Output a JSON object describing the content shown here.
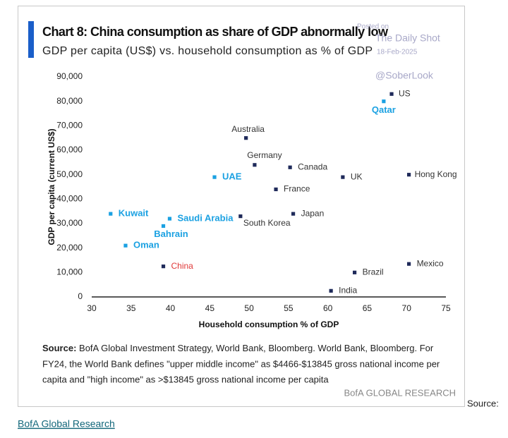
{
  "chart_data": {
    "type": "scatter",
    "title": "Chart 8: China consumption as share of GDP abnormally low",
    "subtitle": "GDP per capita (US$) vs. household consumption as % of GDP",
    "xlabel": "Household consumption % of GDP",
    "ylabel": "GDP per capita (current US$)",
    "point_labels": [
      "US",
      "Qatar",
      "Australia",
      "Germany",
      "Canada",
      "UK",
      "Hong Kong",
      "UAE",
      "France",
      "Japan",
      "South Korea",
      "Kuwait",
      "Saudi Arabia",
      "Bahrain",
      "Oman",
      "China",
      "Mexico",
      "Brazil",
      "India"
    ],
    "x": [
      68.1,
      67.1,
      49.6,
      50.7,
      55.2,
      61.9,
      70.3,
      45.6,
      53.4,
      55.6,
      48.9,
      32.4,
      39.9,
      39.1,
      34.3,
      39.1,
      70.3,
      63.4,
      60.4
    ],
    "values": [
      83000,
      80000,
      65000,
      54000,
      53000,
      49000,
      50000,
      49000,
      44000,
      34000,
      33000,
      34000,
      32000,
      29000,
      21000,
      12500,
      13500,
      10000,
      2500
    ],
    "colors": [
      "#1f2a5a",
      "#1ba1e2",
      "#1f2a5a",
      "#1f2a5a",
      "#1f2a5a",
      "#1f2a5a",
      "#1f2a5a",
      "#1ba1e2",
      "#1f2a5a",
      "#1f2a5a",
      "#1f2a5a",
      "#1ba1e2",
      "#1ba1e2",
      "#1ba1e2",
      "#1ba1e2",
      "#1f2a5a",
      "#1f2a5a",
      "#1f2a5a",
      "#1f2a5a"
    ],
    "label_colors": [
      "#333333",
      "#1ba1e2",
      "#333333",
      "#333333",
      "#333333",
      "#333333",
      "#333333",
      "#1ba1e2",
      "#333333",
      "#333333",
      "#333333",
      "#1ba1e2",
      "#1ba1e2",
      "#1ba1e2",
      "#1ba1e2",
      "#e03a3a",
      "#333333",
      "#333333",
      "#333333"
    ],
    "xlim": [
      30,
      75
    ],
    "xticks": [
      30,
      35,
      40,
      45,
      50,
      55,
      60,
      65,
      70,
      75
    ],
    "ylim": [
      0,
      90000
    ],
    "yticks": [
      0,
      {
        "value": 10000,
        "label": "10,000"
      },
      {
        "value": 20000,
        "label": "20,000"
      },
      {
        "value": 30000,
        "label": "30,000"
      },
      {
        "value": 40000,
        "label": "40,000"
      },
      {
        "value": 50000,
        "label": "50,000"
      },
      {
        "value": 60000,
        "label": "60,000"
      },
      {
        "value": 70000,
        "label": "70,000"
      },
      {
        "value": 80000,
        "label": "80,000"
      },
      {
        "value": 90000,
        "label": "90,000"
      }
    ],
    "grid": false,
    "source_label": "Source:",
    "source_lines": [
      " BofA Global Investment Strategy, World Bank, Bloomberg. World Bank, Bloomberg.  For",
      "FY24, the World Bank defines \"upper middle income\" as $4466-$13845 gross national income per",
      "capita and \"high income\" as >$13845 gross national income per capita"
    ],
    "brand": "BofA GLOBAL RESEARCH"
  },
  "watermark": {
    "posted": "Posted on",
    "site": "The Daily Shot",
    "date": "18-Feb-2025",
    "handle": "@SoberLook"
  },
  "page": {
    "trailing": "Source:",
    "link": "BofA Global Research"
  }
}
